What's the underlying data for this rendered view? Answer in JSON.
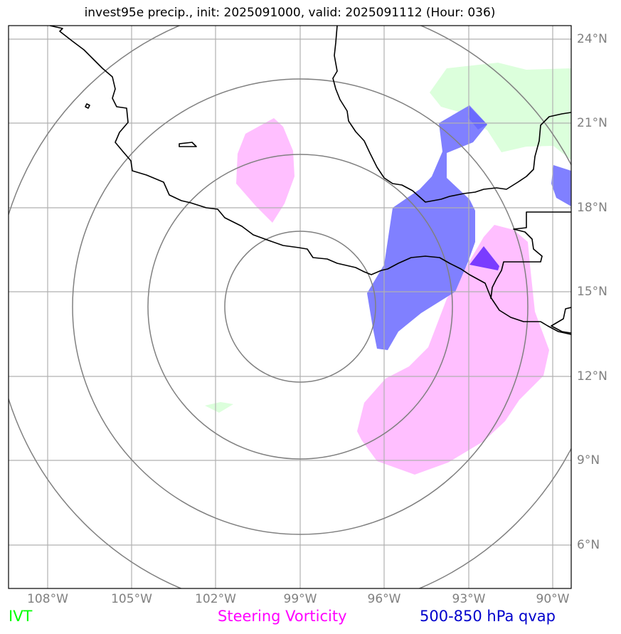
{
  "title": "invest95e precip., init: 2025091000, valid: 2025091112 (Hour: 036)",
  "axes": {
    "lon_labels": [
      "108°W",
      "105°W",
      "102°W",
      "99°W",
      "96°W",
      "93°W",
      "90°W"
    ],
    "lat_labels": [
      "24°N",
      "21°N",
      "18°N",
      "15°N",
      "12°N",
      "9°N",
      "6°N"
    ]
  },
  "legend": {
    "ivt": {
      "label": "IVT",
      "color": "#00ff00"
    },
    "vorticity": {
      "label": "Steering Vorticity",
      "color": "#ff00ff"
    },
    "qvap": {
      "label": "500-850 hPa qvap",
      "color": "#0000cc"
    }
  },
  "colors": {
    "ivt_fill": "#dcffdc",
    "vorticity_fill": "#ffbfff",
    "qvap_fill": "#8080ff",
    "overlap_fill": "#7a3cff",
    "coastline": "#000000",
    "range_rings": "#808080",
    "gridlines": "#b0b0b0"
  },
  "storm_center": {
    "lon": -99,
    "lat": 15
  },
  "range_rings_count": 4
}
